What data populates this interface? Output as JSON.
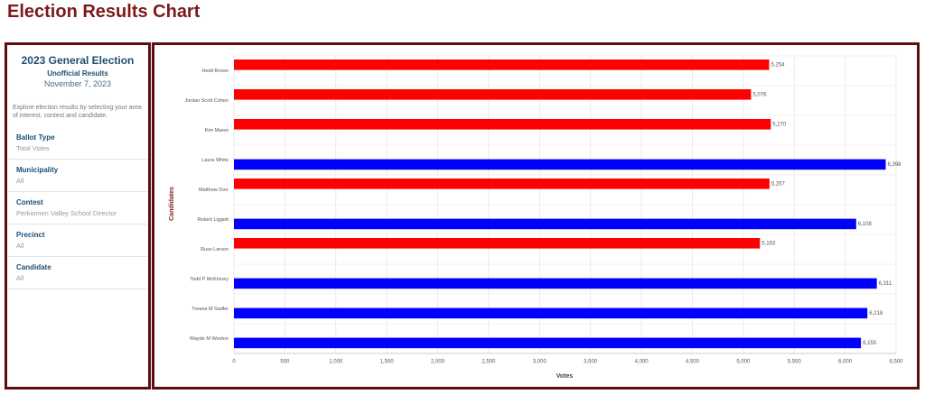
{
  "header": {
    "title": "Election Results Chart"
  },
  "sidebar": {
    "title": "2023 General Election",
    "subtitle": "Unofficial Results",
    "date": "November 7, 2023",
    "description": "Explore election results by selecting your area of interest, contest and candidate.",
    "filters": [
      {
        "label": "Ballot Type",
        "value": "Total Votes"
      },
      {
        "label": "Municipality",
        "value": "All"
      },
      {
        "label": "Contest",
        "value": "Perkiomen Valley School Director"
      },
      {
        "label": "Precinct",
        "value": "All"
      },
      {
        "label": "Candidate",
        "value": "All"
      }
    ]
  },
  "chart_data": {
    "type": "bar",
    "orientation": "horizontal",
    "x_label": "Votes",
    "y_label": "Candidates",
    "categories": [
      "Heidi Brown",
      "Jordan Scott Cohen",
      "Kim Mares",
      "Laura White",
      "Matthew Dorr",
      "Robert Liggett",
      "Russ Larson",
      "Todd P McKinney",
      "Treana M Sadler",
      "Wayde M Weston"
    ],
    "series": [
      {
        "color": "#ff0000",
        "values": [
          5254,
          5076,
          5270,
          null,
          5257,
          null,
          5163,
          null,
          null,
          null
        ],
        "value_labels": [
          "5,254",
          "5,076",
          "5,270",
          null,
          "5,257",
          null,
          "5,163",
          null,
          null,
          null
        ]
      },
      {
        "color": "#0000ff",
        "values": [
          null,
          null,
          null,
          6398,
          null,
          6108,
          null,
          6311,
          6218,
          6155
        ],
        "value_labels": [
          null,
          null,
          null,
          "6,398",
          null,
          "6,108",
          null,
          "6,311",
          "6,218",
          "6,155"
        ]
      }
    ],
    "xlim": [
      0,
      6500
    ],
    "xticks": [
      0,
      500,
      {
        "value": 1000,
        "label": "1,000"
      },
      {
        "value": 1500,
        "label": "1,500"
      },
      {
        "value": 2000,
        "label": "2,000"
      },
      {
        "value": 2500,
        "label": "2,500"
      },
      {
        "value": 3000,
        "label": "3,000"
      },
      {
        "value": 3500,
        "label": "3,500"
      },
      {
        "value": 4000,
        "label": "4,000"
      },
      {
        "value": 4500,
        "label": "4,500"
      },
      {
        "value": 5000,
        "label": "5,000"
      },
      {
        "value": 5500,
        "label": "5,500"
      },
      {
        "value": 6000,
        "label": "6,000"
      },
      {
        "value": 6500,
        "label": "6,500"
      }
    ],
    "grid": true
  }
}
